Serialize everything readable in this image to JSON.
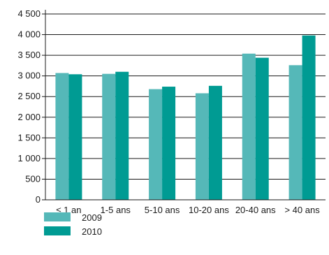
{
  "chart_data": {
    "type": "bar",
    "categories": [
      "≤ 1 an",
      "1-5 ans",
      "5-10 ans",
      "10-20 ans",
      "20-40 ans",
      "> 40 ans"
    ],
    "series": [
      {
        "name": "2009",
        "color": "#55b8b8",
        "values": [
          3070,
          3050,
          2680,
          2580,
          3540,
          3260
        ]
      },
      {
        "name": "2010",
        "color": "#009b93",
        "values": [
          3040,
          3100,
          2740,
          2760,
          3440,
          3980
        ]
      }
    ],
    "yticks": [
      "0",
      "500",
      "1 000",
      "1 500",
      "2 000",
      "2 500",
      "3 000",
      "3 500",
      "4 000",
      "4 500"
    ],
    "ylim": [
      0,
      4500
    ],
    "grid": true,
    "legend_position": "bottom-left",
    "title": "",
    "xlabel": "",
    "ylabel": ""
  }
}
